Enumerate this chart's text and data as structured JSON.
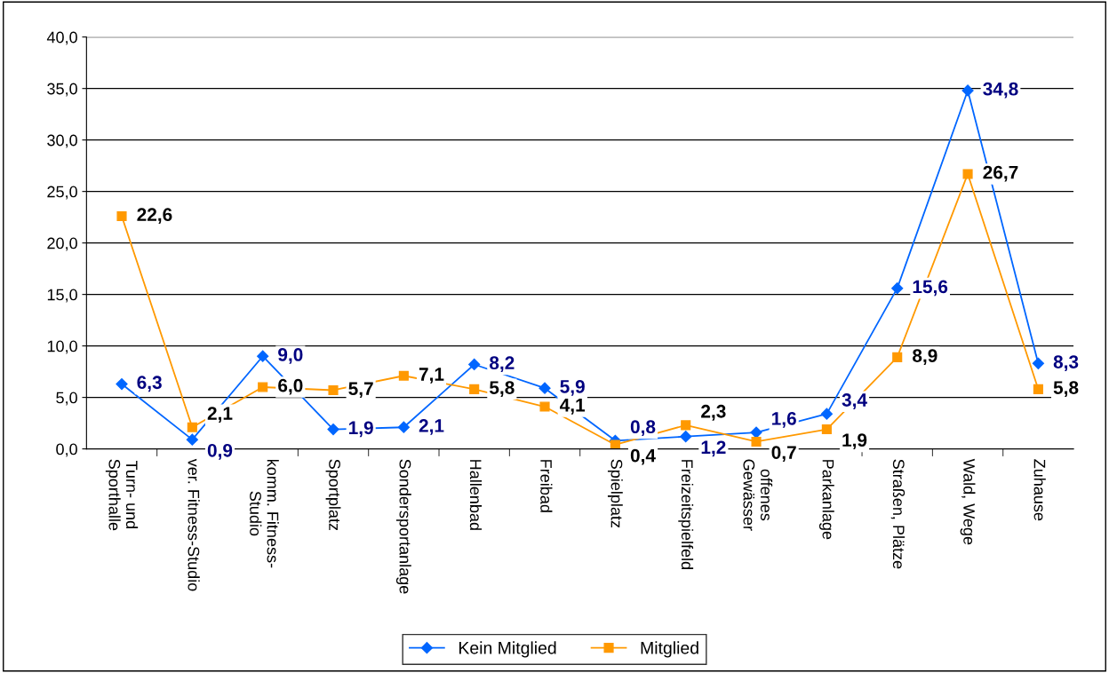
{
  "chart_data": {
    "type": "line",
    "categories": [
      "Turn- und\nSporthalle",
      "ver. Fitness-Studio",
      "komm. Fitness-\nStudio",
      "Sportplatz",
      "Sondersportanlage",
      "Hallenbad",
      "Freibad",
      "Spielplatz",
      "Freizeitspielfeld",
      "offenes\nGewässer",
      "Parkanlage",
      "Straßen, Plätze",
      "Wald, Wege",
      "Zuhause"
    ],
    "series": [
      {
        "name": "Kein Mitglied",
        "color": "#0066ff",
        "marker": "diamond",
        "values": [
          6.3,
          0.9,
          9.0,
          1.9,
          2.1,
          8.2,
          5.9,
          0.8,
          1.2,
          1.6,
          3.4,
          15.6,
          34.8,
          8.3
        ],
        "value_labels": [
          "6,3",
          "0,9",
          "9,0",
          "1,9",
          "2,1",
          "8,2",
          "5,9",
          "0,8",
          "1,2",
          "1,6",
          "3,4",
          "15,6",
          "34,8",
          "8,3"
        ]
      },
      {
        "name": "Mitglied",
        "color": "#ff9900",
        "marker": "square",
        "values": [
          22.6,
          2.1,
          6.0,
          5.7,
          7.1,
          5.8,
          4.1,
          0.4,
          2.3,
          0.7,
          1.9,
          8.9,
          26.7,
          5.8
        ],
        "value_labels": [
          "22,6",
          "2,1",
          "6,0",
          "5,7",
          "7,1",
          "5,8",
          "4,1",
          "0,4",
          "2,3",
          "0,7",
          "1,9",
          "8,9",
          "26,7",
          "5,8"
        ]
      }
    ],
    "ylim": [
      0,
      40
    ],
    "yticks": [
      {
        "value": 0,
        "label": "0,0"
      },
      {
        "value": 5,
        "label": "5,0"
      },
      {
        "value": 10,
        "label": "10,0"
      },
      {
        "value": 15,
        "label": "15,0"
      },
      {
        "value": 20,
        "label": "20,0"
      },
      {
        "value": 25,
        "label": "25,0"
      },
      {
        "value": 30,
        "label": "30,0"
      },
      {
        "value": 35,
        "label": "35,0"
      },
      {
        "value": 40,
        "label": "40,0"
      }
    ],
    "grid": "y",
    "legend": "bottom",
    "line_style": "solid"
  }
}
